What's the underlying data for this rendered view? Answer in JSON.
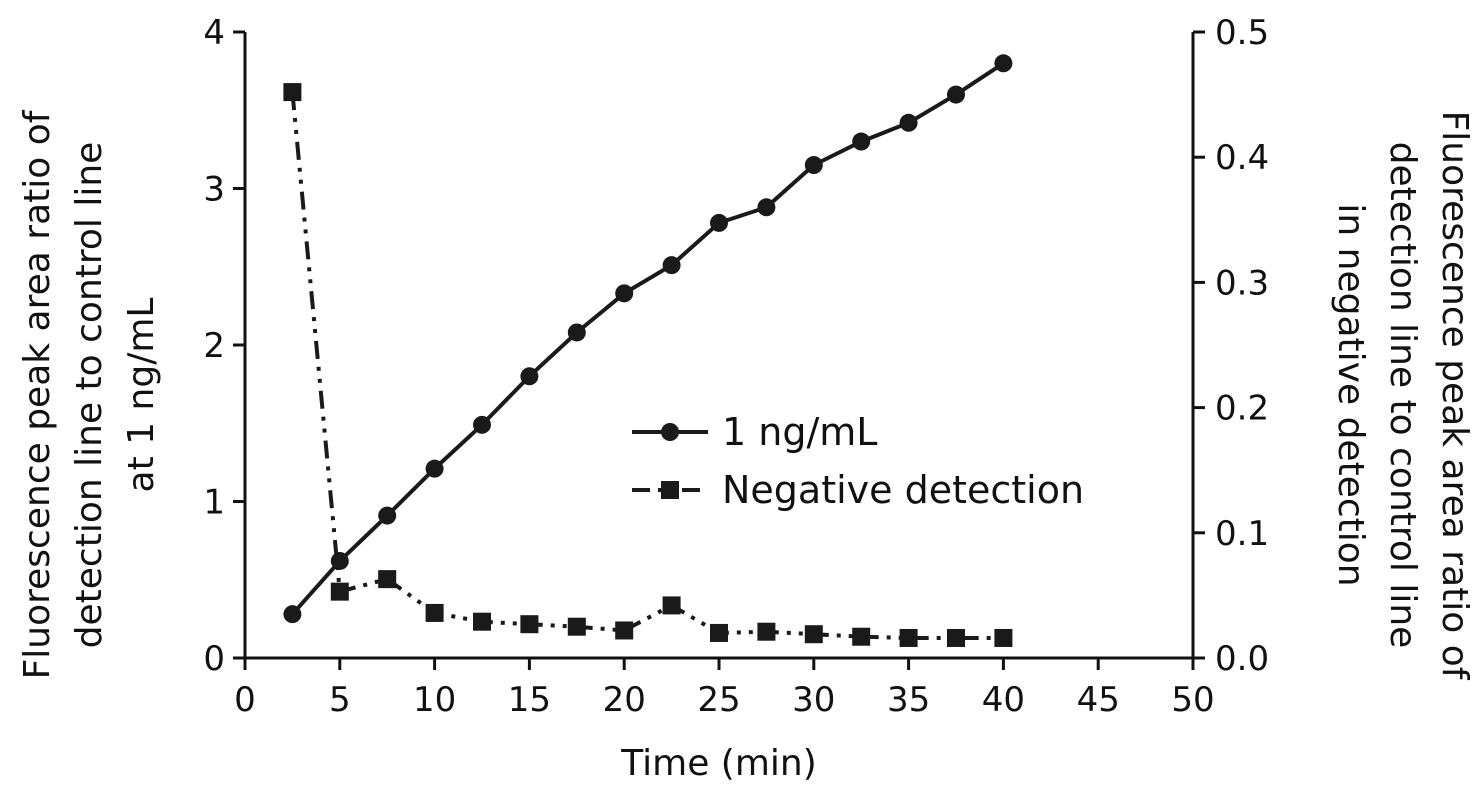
{
  "chart_data": {
    "type": "line",
    "xlabel": "Time (min)",
    "ylabel_left": [
      "Fluorescence peak area ratio of",
      "detection line to control line",
      "at 1 ng/mL"
    ],
    "ylabel_right": [
      "Fluorescence peak area ratio of",
      "detection line to control line",
      "in negative detection"
    ],
    "xlim": [
      0,
      50
    ],
    "ylim_left": [
      0,
      4
    ],
    "ylim_right": [
      0.0,
      0.5
    ],
    "x_ticks": [
      "0",
      "5",
      "10",
      "15",
      "20",
      "25",
      "30",
      "35",
      "40",
      "45",
      "50"
    ],
    "y_left_ticks": [
      "0",
      "1",
      "2",
      "3",
      "4"
    ],
    "y_right_ticks": [
      "0.0",
      "0.1",
      "0.2",
      "0.3",
      "0.4",
      "0.5"
    ],
    "legend_placement": "center-right",
    "series": [
      {
        "name": "1 ng/mL",
        "axis": "left",
        "marker": "circle",
        "line_style": "solid",
        "color": "#1a1a1a",
        "x": [
          2.5,
          5,
          7.5,
          10,
          12.5,
          15,
          17.5,
          20,
          22.5,
          25,
          27.5,
          30,
          32.5,
          35,
          37.5,
          40
        ],
        "y": [
          0.28,
          0.62,
          0.91,
          1.21,
          1.49,
          1.8,
          2.08,
          2.33,
          2.51,
          2.78,
          2.88,
          3.15,
          3.3,
          3.42,
          3.6,
          3.8
        ]
      },
      {
        "name": "Negative detection",
        "axis": "right",
        "marker": "square",
        "line_style": "dash-dot-dot",
        "color": "#1a1a1a",
        "x": [
          2.5,
          5,
          7.5,
          10,
          12.5,
          15,
          17.5,
          20,
          22.5,
          25,
          27.5,
          30,
          32.5,
          35,
          37.5,
          40
        ],
        "y": [
          0.452,
          0.053,
          0.063,
          0.036,
          0.029,
          0.027,
          0.025,
          0.022,
          0.042,
          0.02,
          0.021,
          0.019,
          0.017,
          0.016,
          0.016,
          0.016
        ]
      }
    ]
  }
}
